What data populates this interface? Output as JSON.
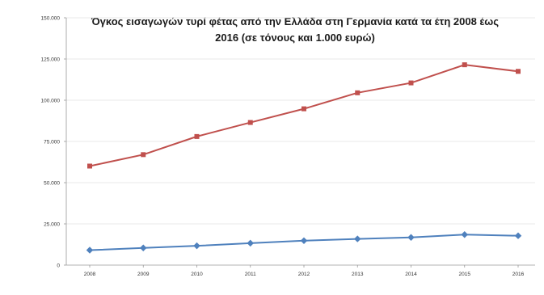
{
  "chart_data": {
    "type": "line",
    "title_lines": [
      "Όγκος εισαγωγών τυρί φέτας από την Ελλάδα στη Γερμανία κατά τα έτη 2008 έως",
      "2016 (σε τόνους και 1.000 ευρώ)"
    ],
    "x": [
      "2008",
      "2009",
      "2010",
      "2011",
      "2012",
      "2013",
      "2014",
      "2015",
      "2016"
    ],
    "y_ticks": [
      "0",
      "25.000",
      "50.000",
      "75.000",
      "100.000",
      "125.000",
      "150.000"
    ],
    "ylim": [
      0,
      150000
    ],
    "grid": true,
    "series": [
      {
        "color": "#c0504d",
        "values": [
          60060,
          67000,
          78000,
          86500,
          94800,
          104500,
          110500,
          121500,
          117500
        ]
      },
      {
        "color": "#4f81bd",
        "values": [
          9045,
          10400,
          11700,
          13300,
          14800,
          15900,
          16800,
          18500,
          17800
        ]
      }
    ]
  }
}
